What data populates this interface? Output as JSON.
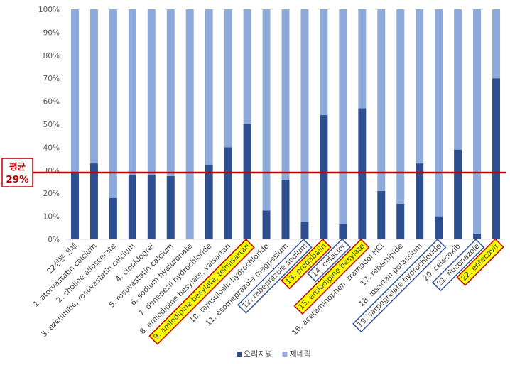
{
  "chart_data": {
    "type": "bar",
    "stacked": true,
    "title": "",
    "xlabel": "",
    "ylabel": "",
    "ylim": [
      0,
      100
    ],
    "y_unit": "%",
    "y_ticks": [
      0,
      10,
      20,
      30,
      40,
      50,
      60,
      70,
      80,
      90,
      100
    ],
    "categories": [
      "22성분 전체",
      "1. atorvastatin calcium",
      "2. choline alfoscerate",
      "3. ezetimibe, rosuvastatin calcium",
      "4. clopidogrel",
      "5. rosuvastatin calcium",
      "6. sodium hyaluronate",
      "7. donepezil hydrochloride",
      "8. amlodipine besylate, valsartan",
      "9. amlodipine besylate, telmisartan",
      "10. tamsulosin hydrochloride",
      "11. esomeprazole magnesium",
      "12. rabeprazole sodium",
      "13. pregabalin",
      "14. cefaclor",
      "15. amlodipine besylate",
      "16. acetaminophen, tramadol HCl",
      "17. rebamipide",
      "18. losartan potassium",
      "19. sarpogrelate hydrochloride",
      "20. celecoxib",
      "21. fluconazole",
      "22. entecavir"
    ],
    "category_highlight": [
      "none",
      "none",
      "none",
      "none",
      "none",
      "none",
      "none",
      "none",
      "none",
      "yellow",
      "none",
      "none",
      "outline",
      "yellow",
      "outline",
      "yellow",
      "none",
      "none",
      "none",
      "outline",
      "none",
      "outline",
      "yellow"
    ],
    "series": [
      {
        "name": "오리지널",
        "color": "#2e4f8f",
        "values": [
          29,
          33,
          18,
          28,
          28,
          27.5,
          0,
          32.5,
          40,
          50,
          12.5,
          26,
          7.5,
          54,
          6.5,
          57,
          21,
          15.5,
          33,
          10,
          39,
          2.5,
          70
        ]
      },
      {
        "name": "제네릭",
        "color": "#8eaadb",
        "values": [
          71,
          67,
          82,
          72,
          72,
          72.5,
          100,
          67.5,
          60,
          50,
          87.5,
          74,
          92.5,
          46,
          93.5,
          43,
          79,
          84.5,
          67,
          90,
          61,
          97.5,
          30
        ]
      }
    ],
    "reference_line": {
      "value": 29,
      "label_1": "평균",
      "label_2": "29%",
      "color": "#c00000"
    },
    "legend_placement": "bottom",
    "grid": "none",
    "highlight_colors": {
      "yellow_fill": "#ffff00",
      "yellow_border": "#c00000",
      "outline_border": "#2f5597"
    }
  }
}
